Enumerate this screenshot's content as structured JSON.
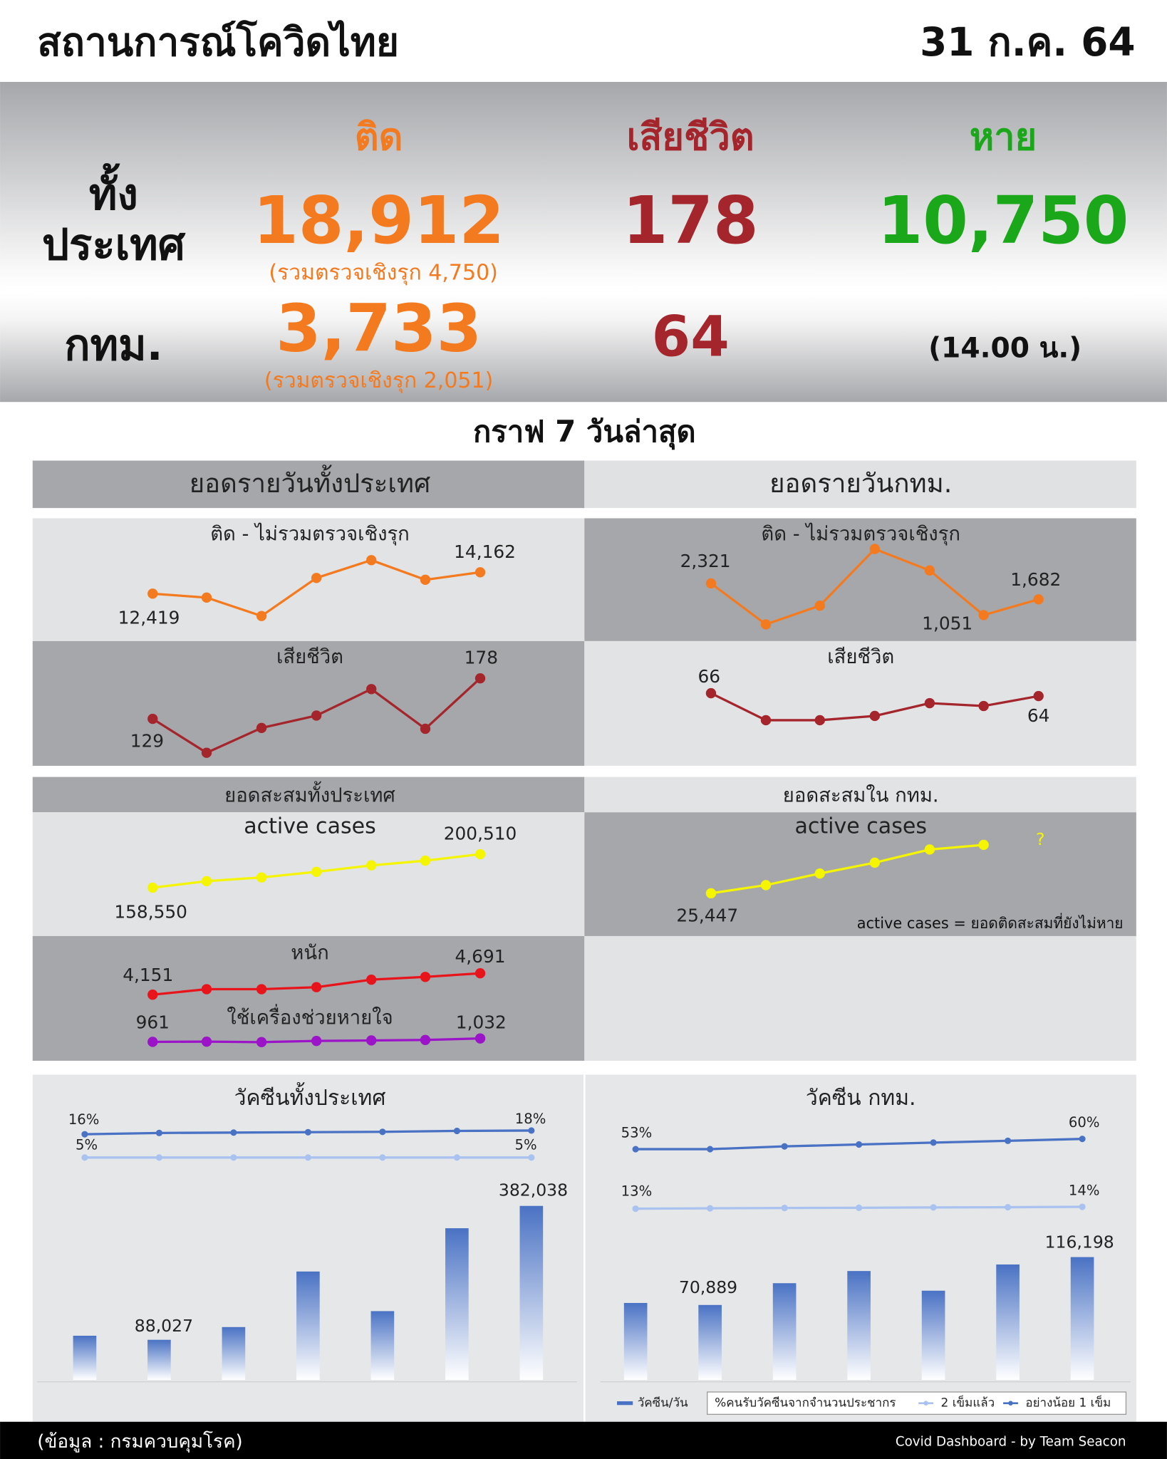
{
  "header": {
    "title": "สถานการณ์โควิดไทย",
    "date": "31 ก.ค. 64"
  },
  "summary": {
    "columns": [
      "ติด",
      "เสียชีวิต",
      "หาย"
    ],
    "national": {
      "label": [
        "ทั้ง",
        "ประเทศ"
      ],
      "infected": "18,912",
      "infected_note": "(รวมตรวจเชิงรุก 4,750)",
      "deaths": "178",
      "recovered": "10,750"
    },
    "bangkok": {
      "label": "กทม.",
      "infected": "3,733",
      "infected_note": "(รวมตรวจเชิงรุก 2,051)",
      "deaths": "64",
      "note": "(14.00 น.)"
    }
  },
  "section_title": "กราฟ 7 วันล่าสุด",
  "panels": {
    "daily_national": "ยอดรายวันทั้งประเทศ",
    "daily_bangkok": "ยอดรายวันกทม.",
    "cumulative_national": "ยอดสะสมทั้งประเทศ",
    "cumulative_bangkok": "ยอดสะสมใน กทม."
  },
  "chart_data": [
    {
      "type": "line",
      "title": "ติด - ไม่รวมตรวจเชิงรุก",
      "color": "#f47a20",
      "values": [
        12419,
        12100,
        10600,
        13700,
        15150,
        13550,
        14162
      ],
      "value_labels": [
        "12,419",
        null,
        null,
        null,
        null,
        null,
        "14,162"
      ]
    },
    {
      "type": "line",
      "title": "เสียชีวิต",
      "color": "#a4262c",
      "values": [
        129,
        88,
        118,
        133,
        165,
        117,
        178
      ],
      "value_labels": [
        "129",
        null,
        null,
        null,
        null,
        null,
        "178"
      ]
    },
    {
      "type": "line",
      "title": "ติด - ไม่รวมตรวจเชิงรุก",
      "color": "#f47a20",
      "values": [
        2321,
        680,
        1430,
        3700,
        2840,
        1051,
        1682
      ],
      "value_labels": [
        "2,321",
        null,
        null,
        null,
        null,
        "1,051",
        "1,682"
      ]
    },
    {
      "type": "line",
      "title": "เสียชีวิต",
      "color": "#a4262c",
      "values": [
        66,
        47,
        47,
        50,
        59,
        57,
        64
      ],
      "value_labels": [
        "66",
        null,
        null,
        null,
        null,
        null,
        "64"
      ]
    },
    {
      "type": "line",
      "title": "active cases",
      "color": "#f5f500",
      "values": [
        158550,
        166700,
        171400,
        178400,
        186500,
        192400,
        200510
      ],
      "value_labels": [
        "158,550",
        null,
        null,
        null,
        null,
        null,
        "200,510"
      ]
    },
    {
      "type": "line",
      "title": "active cases",
      "color": "#f5f500",
      "values": [
        25447,
        26500,
        28000,
        29400,
        31100,
        31700,
        null
      ],
      "value_labels": [
        "25,447",
        null,
        null,
        null,
        null,
        null,
        null
      ],
      "annotations": [
        "?",
        "active cases = ยอดติดสะสมที่ยังไม่หาย"
      ]
    },
    {
      "type": "line",
      "title": "หนัก",
      "color": "#e8141b",
      "values": [
        4151,
        4290,
        4290,
        4340,
        4530,
        4600,
        4691
      ],
      "value_labels": [
        "4,151",
        null,
        null,
        null,
        null,
        null,
        "4,691"
      ]
    },
    {
      "type": "line",
      "title": "ใช้เครื่องช่วยหายใจ",
      "color": "#9b14c8",
      "values": [
        961,
        965,
        955,
        980,
        990,
        1000,
        1032
      ],
      "value_labels": [
        "961",
        null,
        null,
        null,
        null,
        null,
        "1,032"
      ]
    },
    {
      "type": "bar",
      "title": "วัคซีนทั้งประเทศ",
      "series": [
        {
          "type": "bar",
          "color": "#4a72c4",
          "values": [
            97000,
            88027,
            116000,
            238000,
            151000,
            333000,
            382038
          ],
          "value_labels": [
            null,
            "88,027",
            null,
            null,
            null,
            null,
            "382,038"
          ]
        },
        {
          "type": "line",
          "color": "#4a72c4",
          "values": [
            16,
            16.7,
            16.9,
            17.1,
            17.3,
            17.8,
            18
          ],
          "value_labels": [
            "16%",
            null,
            null,
            null,
            null,
            null,
            "18%"
          ]
        },
        {
          "type": "line",
          "color": "#a9c2ef",
          "values": [
            5,
            5,
            5,
            5,
            5,
            5,
            5
          ],
          "value_labels": [
            "5%",
            null,
            null,
            null,
            null,
            null,
            "5%"
          ]
        }
      ]
    },
    {
      "type": "bar",
      "title": "วัคซีน กทม.",
      "legend_title": "%คนรับวัคซีนจากจำนวนประชากร",
      "series": [
        {
          "type": "bar",
          "name": "วัคซีน/วัน",
          "color": "#4a72c4",
          "values": [
            72800,
            70889,
            91500,
            103000,
            84400,
            109200,
            116198
          ],
          "value_labels": [
            null,
            "70,889",
            null,
            null,
            null,
            null,
            "116,198"
          ]
        },
        {
          "type": "line",
          "name": "อย่างน้อย 1 เข็ม",
          "color": "#4a72c4",
          "values": [
            53,
            53,
            54.9,
            56.2,
            57.5,
            58.7,
            60
          ],
          "value_labels": [
            "53%",
            null,
            null,
            null,
            null,
            null,
            "60%"
          ]
        },
        {
          "type": "line",
          "name": "2 เข็มแล้ว",
          "color": "#a9c2ef",
          "values": [
            13,
            13.2,
            13.4,
            13.5,
            13.7,
            13.8,
            14
          ],
          "value_labels": [
            "13%",
            null,
            null,
            null,
            null,
            null,
            "14%"
          ]
        }
      ]
    }
  ],
  "footer": {
    "source": "(ข้อมูล : กรมควบคุมโรค)",
    "credit": "Covid Dashboard - by Team Seacon"
  }
}
